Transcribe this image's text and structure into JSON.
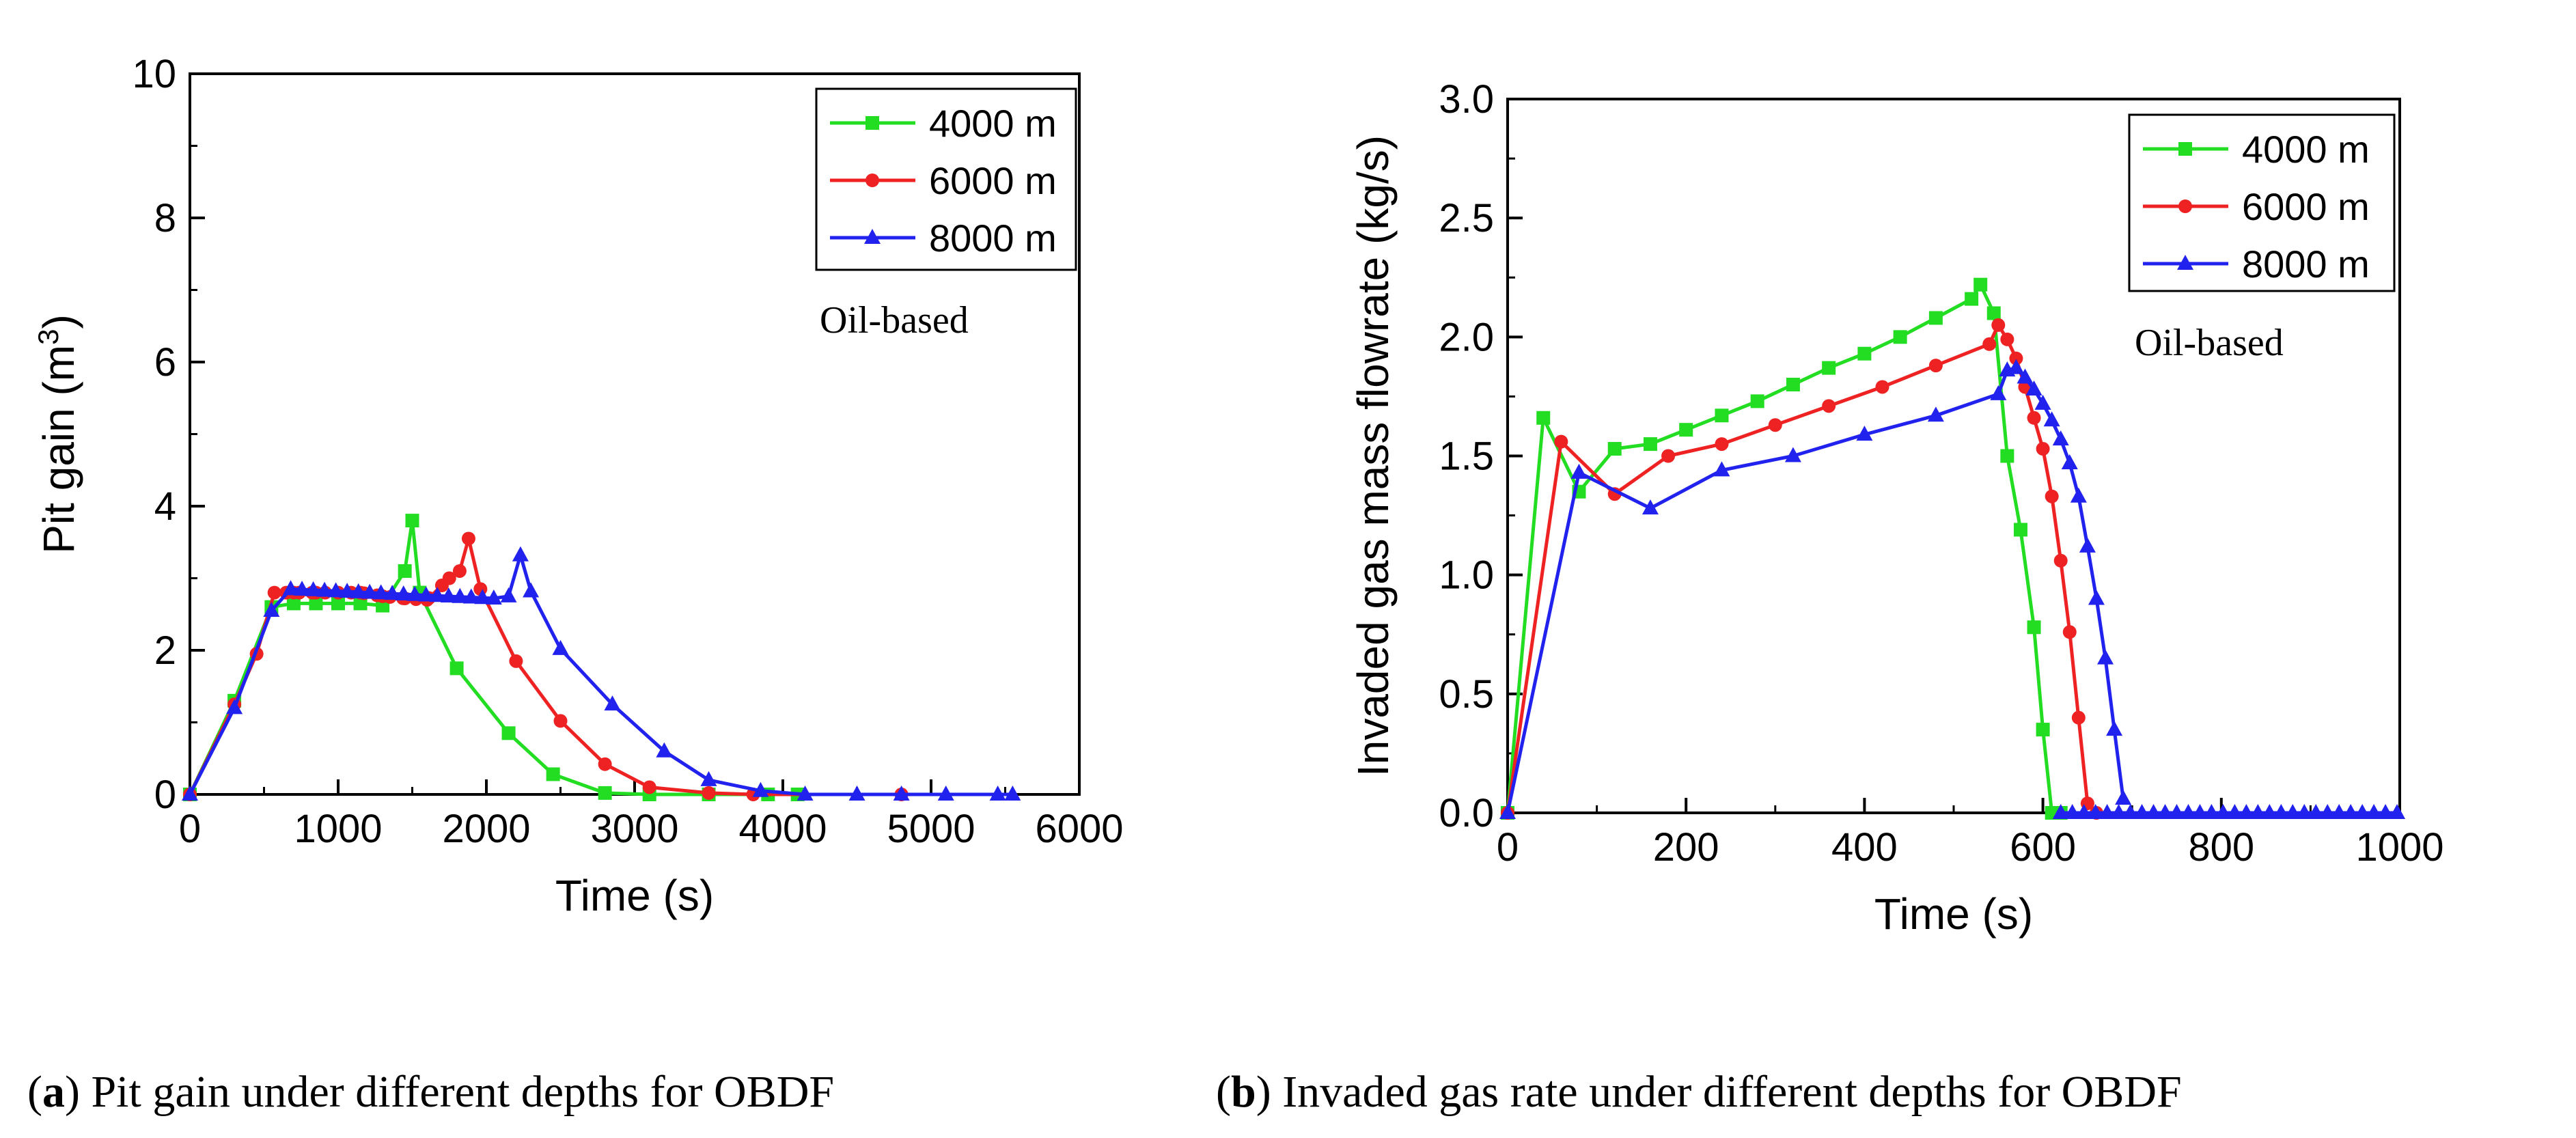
{
  "chart_data": [
    {
      "type": "line",
      "panel": "a",
      "xlabel": "Time (s)",
      "ylabel_main": "Pit gain (m",
      "ylabel_sup": "3",
      "ylabel_close": ")",
      "xlim": [
        0,
        6000
      ],
      "ylim": [
        0,
        10
      ],
      "xticks": [
        0,
        1000,
        2000,
        3000,
        4000,
        5000,
        6000
      ],
      "yticks": [
        0,
        2,
        4,
        6,
        8,
        10
      ],
      "legend_position": "top-right",
      "annotation": "Oil-based",
      "caption_letter": "a",
      "caption_text": "Pit gain under different depths for OBDF",
      "series": [
        {
          "name": "4000 m",
          "color": "#22dd22",
          "marker": "square",
          "x": [
            0,
            300,
            550,
            700,
            850,
            1000,
            1150,
            1300,
            1450,
            1500,
            1550,
            1800,
            2150,
            2450,
            2800,
            3100,
            3500,
            3900,
            4100
          ],
          "y": [
            0,
            1.3,
            2.6,
            2.65,
            2.65,
            2.65,
            2.65,
            2.62,
            3.1,
            3.8,
            2.8,
            1.75,
            0.85,
            0.28,
            0.02,
            0,
            0,
            0,
            0
          ]
        },
        {
          "name": "6000 m",
          "color": "#ee2222",
          "marker": "circle",
          "x": [
            0,
            300,
            450,
            570,
            700,
            850,
            1000,
            1150,
            1300,
            1450,
            1600,
            1750,
            1820,
            1880,
            1960,
            2200,
            2500,
            2800,
            3100,
            3500,
            3800,
            4800
          ],
          "y": [
            0,
            1.25,
            1.95,
            2.8,
            2.8,
            2.8,
            2.8,
            2.8,
            2.75,
            2.72,
            2.7,
            3.0,
            3.1,
            3.55,
            2.85,
            1.85,
            1.02,
            0.42,
            0.1,
            0.02,
            0,
            0
          ],
          "dense_segment": [
            650,
            1700,
            12
          ]
        },
        {
          "name": "8000 m",
          "color": "#2222ee",
          "marker": "triangle",
          "x": [
            0,
            300,
            550,
            680,
            2050,
            2150,
            2230,
            2300,
            2500,
            2850,
            3200,
            3500,
            3850,
            4150,
            4500,
            4800,
            5100,
            5450,
            5550
          ],
          "y": [
            0,
            1.2,
            2.55,
            2.85,
            2.72,
            2.75,
            3.32,
            2.82,
            2.02,
            1.25,
            0.6,
            0.2,
            0.05,
            0,
            0,
            0,
            0,
            0,
            0
          ],
          "dense_segment": [
            680,
            2050,
            18
          ]
        }
      ]
    },
    {
      "type": "line",
      "panel": "b",
      "xlabel": "Time (s)",
      "ylabel_main": "Invaded gas mass flowrate (kg/s)",
      "xlim": [
        0,
        1000
      ],
      "ylim": [
        0,
        3.0
      ],
      "xticks": [
        0,
        200,
        400,
        600,
        800,
        1000
      ],
      "yticks": [
        "0.0",
        "0.5",
        "1.0",
        "1.5",
        "2.0",
        "2.5",
        "3.0"
      ],
      "legend_position": "top-right",
      "annotation": "Oil-based",
      "caption_letter": "b",
      "caption_text": "Invaded gas rate under different depths for OBDF",
      "series": [
        {
          "name": "4000 m",
          "color": "#22dd22",
          "marker": "square",
          "x": [
            0,
            40,
            80,
            120,
            160,
            200,
            240,
            280,
            320,
            360,
            400,
            440,
            480,
            520,
            530,
            545,
            560,
            575,
            590,
            600,
            610,
            620
          ],
          "y": [
            0,
            1.66,
            1.35,
            1.53,
            1.55,
            1.61,
            1.67,
            1.73,
            1.8,
            1.87,
            1.93,
            2.0,
            2.08,
            2.16,
            2.22,
            2.1,
            1.5,
            1.19,
            0.78,
            0.35,
            0,
            0
          ]
        },
        {
          "name": "6000 m",
          "color": "#ee2222",
          "marker": "circle",
          "x": [
            0,
            60,
            120,
            180,
            240,
            300,
            360,
            420,
            480,
            540,
            550,
            560,
            570,
            580,
            590,
            600,
            610,
            620,
            630,
            640,
            650,
            660
          ],
          "y": [
            0,
            1.56,
            1.34,
            1.5,
            1.55,
            1.63,
            1.71,
            1.79,
            1.88,
            1.97,
            2.05,
            1.99,
            1.91,
            1.79,
            1.66,
            1.53,
            1.33,
            1.06,
            0.76,
            0.4,
            0.04,
            0
          ]
        },
        {
          "name": "8000 m",
          "color": "#2222ee",
          "marker": "triangle",
          "x": [
            0,
            80,
            160,
            240,
            320,
            400,
            480,
            550,
            560,
            570,
            580,
            590,
            600,
            610,
            620,
            630,
            640,
            650,
            660,
            670,
            680,
            690
          ],
          "y": [
            0,
            1.43,
            1.28,
            1.44,
            1.5,
            1.59,
            1.67,
            1.76,
            1.86,
            1.87,
            1.83,
            1.78,
            1.72,
            1.65,
            1.57,
            1.47,
            1.33,
            1.12,
            0.9,
            0.65,
            0.35,
            0.06
          ]
        }
      ],
      "tail_markers": {
        "from": 620,
        "to": 1000,
        "step": 13,
        "value": 0
      }
    }
  ]
}
